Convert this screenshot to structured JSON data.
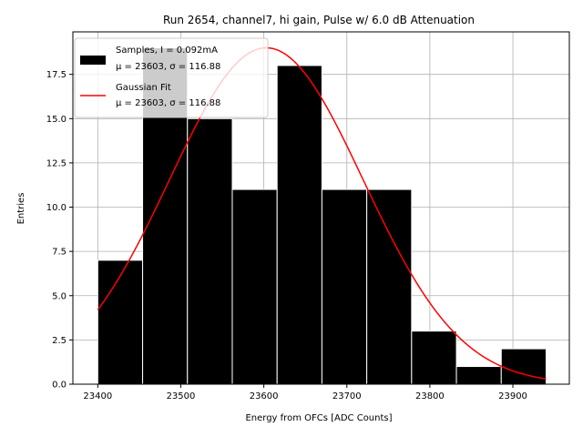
{
  "chart_data": {
    "type": "bar",
    "title": "Run 2654, channel7, hi gain, Pulse w/ 6.0 dB Attenuation",
    "xlabel": "Energy from OFCs [ADC Counts]",
    "ylabel": "Entries",
    "xlim": [
      23370,
      23968
    ],
    "ylim": [
      0,
      19.9
    ],
    "xticks": [
      23400,
      23500,
      23600,
      23700,
      23800,
      23900
    ],
    "yticks": [
      0.0,
      2.5,
      5.0,
      7.5,
      10.0,
      12.5,
      15.0,
      17.5
    ],
    "ytick_labels": [
      "0.0",
      "2.5",
      "5.0",
      "7.5",
      "10.0",
      "12.5",
      "15.0",
      "17.5"
    ],
    "grid": true,
    "legend_position": "top-left",
    "bins": {
      "edges": [
        23400,
        23454,
        23508,
        23562,
        23616,
        23670,
        23724,
        23778,
        23832,
        23886,
        23940
      ],
      "counts": [
        7,
        19,
        15,
        11,
        18,
        11,
        11,
        3,
        1,
        2
      ],
      "color": "#000000",
      "edgecolor": "#ffffff"
    },
    "fit": {
      "mu": 23603,
      "sigma": 116.88,
      "amplitude": 19.0,
      "x_range": [
        23400,
        23940
      ],
      "color": "#ff0000"
    },
    "legend": [
      {
        "label_line1": "Samples, I = 0.092mA",
        "label_line2": "μ = 23603, σ = 116.88",
        "kind": "patch",
        "color": "#000000"
      },
      {
        "label_line1": "Gaussian Fit",
        "label_line2": "μ = 23603, σ = 116.88",
        "kind": "line",
        "color": "#ff0000"
      }
    ]
  }
}
